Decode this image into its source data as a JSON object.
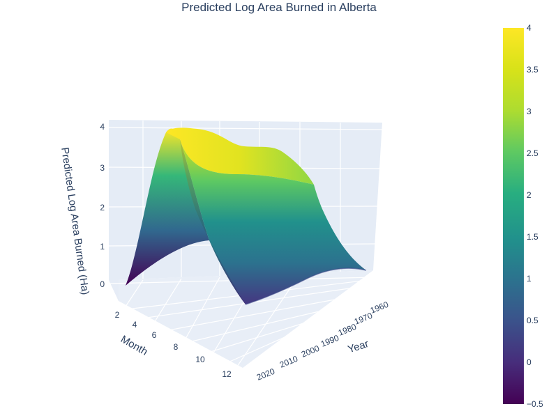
{
  "chart_data": {
    "type": "surface",
    "title": "Predicted Log Area Burned in Alberta",
    "zlabel": "Predicted Log Area Burned (Ha)",
    "xlabel": "Month",
    "ylabel": "Year",
    "month_ticks": [
      "2",
      "4",
      "6",
      "8",
      "10",
      "12"
    ],
    "year_ticks": [
      "1960",
      "1970",
      "1980",
      "1990",
      "2000",
      "2010",
      "2020"
    ],
    "z_ticks": [
      "0",
      "1",
      "2",
      "3",
      "4"
    ],
    "colorbar": {
      "colorscale": "Viridis",
      "range": [
        -0.5,
        4
      ],
      "ticks": [
        "−0.5",
        "0",
        "0.5",
        "1",
        "1.5",
        "2",
        "2.5",
        "3",
        "3.5",
        "4"
      ]
    },
    "surface_profiles": {
      "month": [
        1,
        2,
        3,
        4,
        5,
        6,
        7,
        8,
        9,
        10,
        11,
        12
      ],
      "year": [
        1960,
        1970,
        1980,
        1990,
        2000,
        2010,
        2020
      ],
      "z_month12_by_year": [
        0.3,
        0.4,
        0.6,
        0.65,
        0.4,
        0.2,
        0.0
      ],
      "z_ridge_by_year": [
        0.2,
        2.4,
        3.7,
        3.5,
        3.9,
        3.95,
        4.0
      ],
      "z_month1_by_year": [
        0.1,
        0.3,
        0.7,
        0.85,
        0.8,
        0.5,
        -0.3
      ]
    }
  }
}
